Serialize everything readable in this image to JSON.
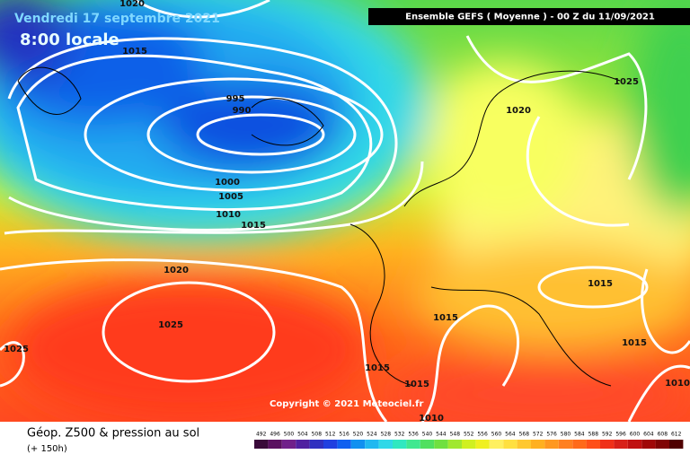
{
  "header": {
    "date": "Vendredi 17 septembre 2021",
    "time": "8:00 locale",
    "model": "Ensemble GEFS  ( Moyenne )  -  00 Z du 11/09/2021"
  },
  "isobar_labels": [
    "1020",
    "1015",
    "995",
    "990",
    "1000",
    "1005",
    "1010",
    "1015",
    "1020",
    "1025",
    "1025",
    "1025",
    "1020",
    "1015",
    "1015",
    "1015",
    "1015",
    "1015",
    "1010",
    "1010"
  ],
  "copyright": "Copyright © 2021 Meteociel.fr",
  "footer": {
    "title": "Géop. Z500 & pression au sol",
    "lead": "(+ 150h)"
  },
  "legend": {
    "labels": [
      492,
      496,
      500,
      504,
      508,
      512,
      516,
      520,
      524,
      528,
      532,
      536,
      540,
      544,
      548,
      552,
      556,
      560,
      564,
      568,
      572,
      576,
      580,
      584,
      588,
      592,
      596,
      600,
      604,
      608,
      612
    ]
  }
}
